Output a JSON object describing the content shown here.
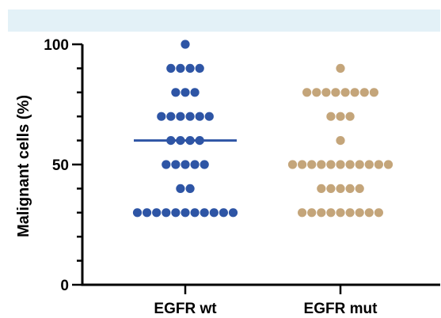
{
  "header_band_color": "#e3f1f7",
  "chart_data": {
    "type": "scatter",
    "subtype": "dot-plot",
    "title": "",
    "xlabel": "",
    "ylabel": "Malignant cells (%)",
    "ylim": [
      0,
      100
    ],
    "yticks": [
      0,
      50,
      100
    ],
    "categories": [
      "EGFR wt",
      "EGFR mut"
    ],
    "grid": false,
    "legend": "none",
    "series": [
      {
        "color": "#2e55a5",
        "points": [
          {
            "y": 100,
            "count": 1
          },
          {
            "y": 90,
            "count": 4
          },
          {
            "y": 80,
            "count": 3
          },
          {
            "y": 70,
            "count": 6
          },
          {
            "y": 60,
            "count": 4
          },
          {
            "y": 50,
            "count": 5
          },
          {
            "y": 40,
            "count": 2
          },
          {
            "y": 30,
            "count": 11
          }
        ],
        "median": 60,
        "median_color": "#2e55a5"
      },
      {
        "color": "#c4a57a",
        "points": [
          {
            "y": 90,
            "count": 1
          },
          {
            "y": 80,
            "count": 8
          },
          {
            "y": 70,
            "count": 3
          },
          {
            "y": 60,
            "count": 1
          },
          {
            "y": 50,
            "count": 11
          },
          {
            "y": 40,
            "count": 5
          },
          {
            "y": 30,
            "count": 9
          }
        ]
      }
    ]
  }
}
